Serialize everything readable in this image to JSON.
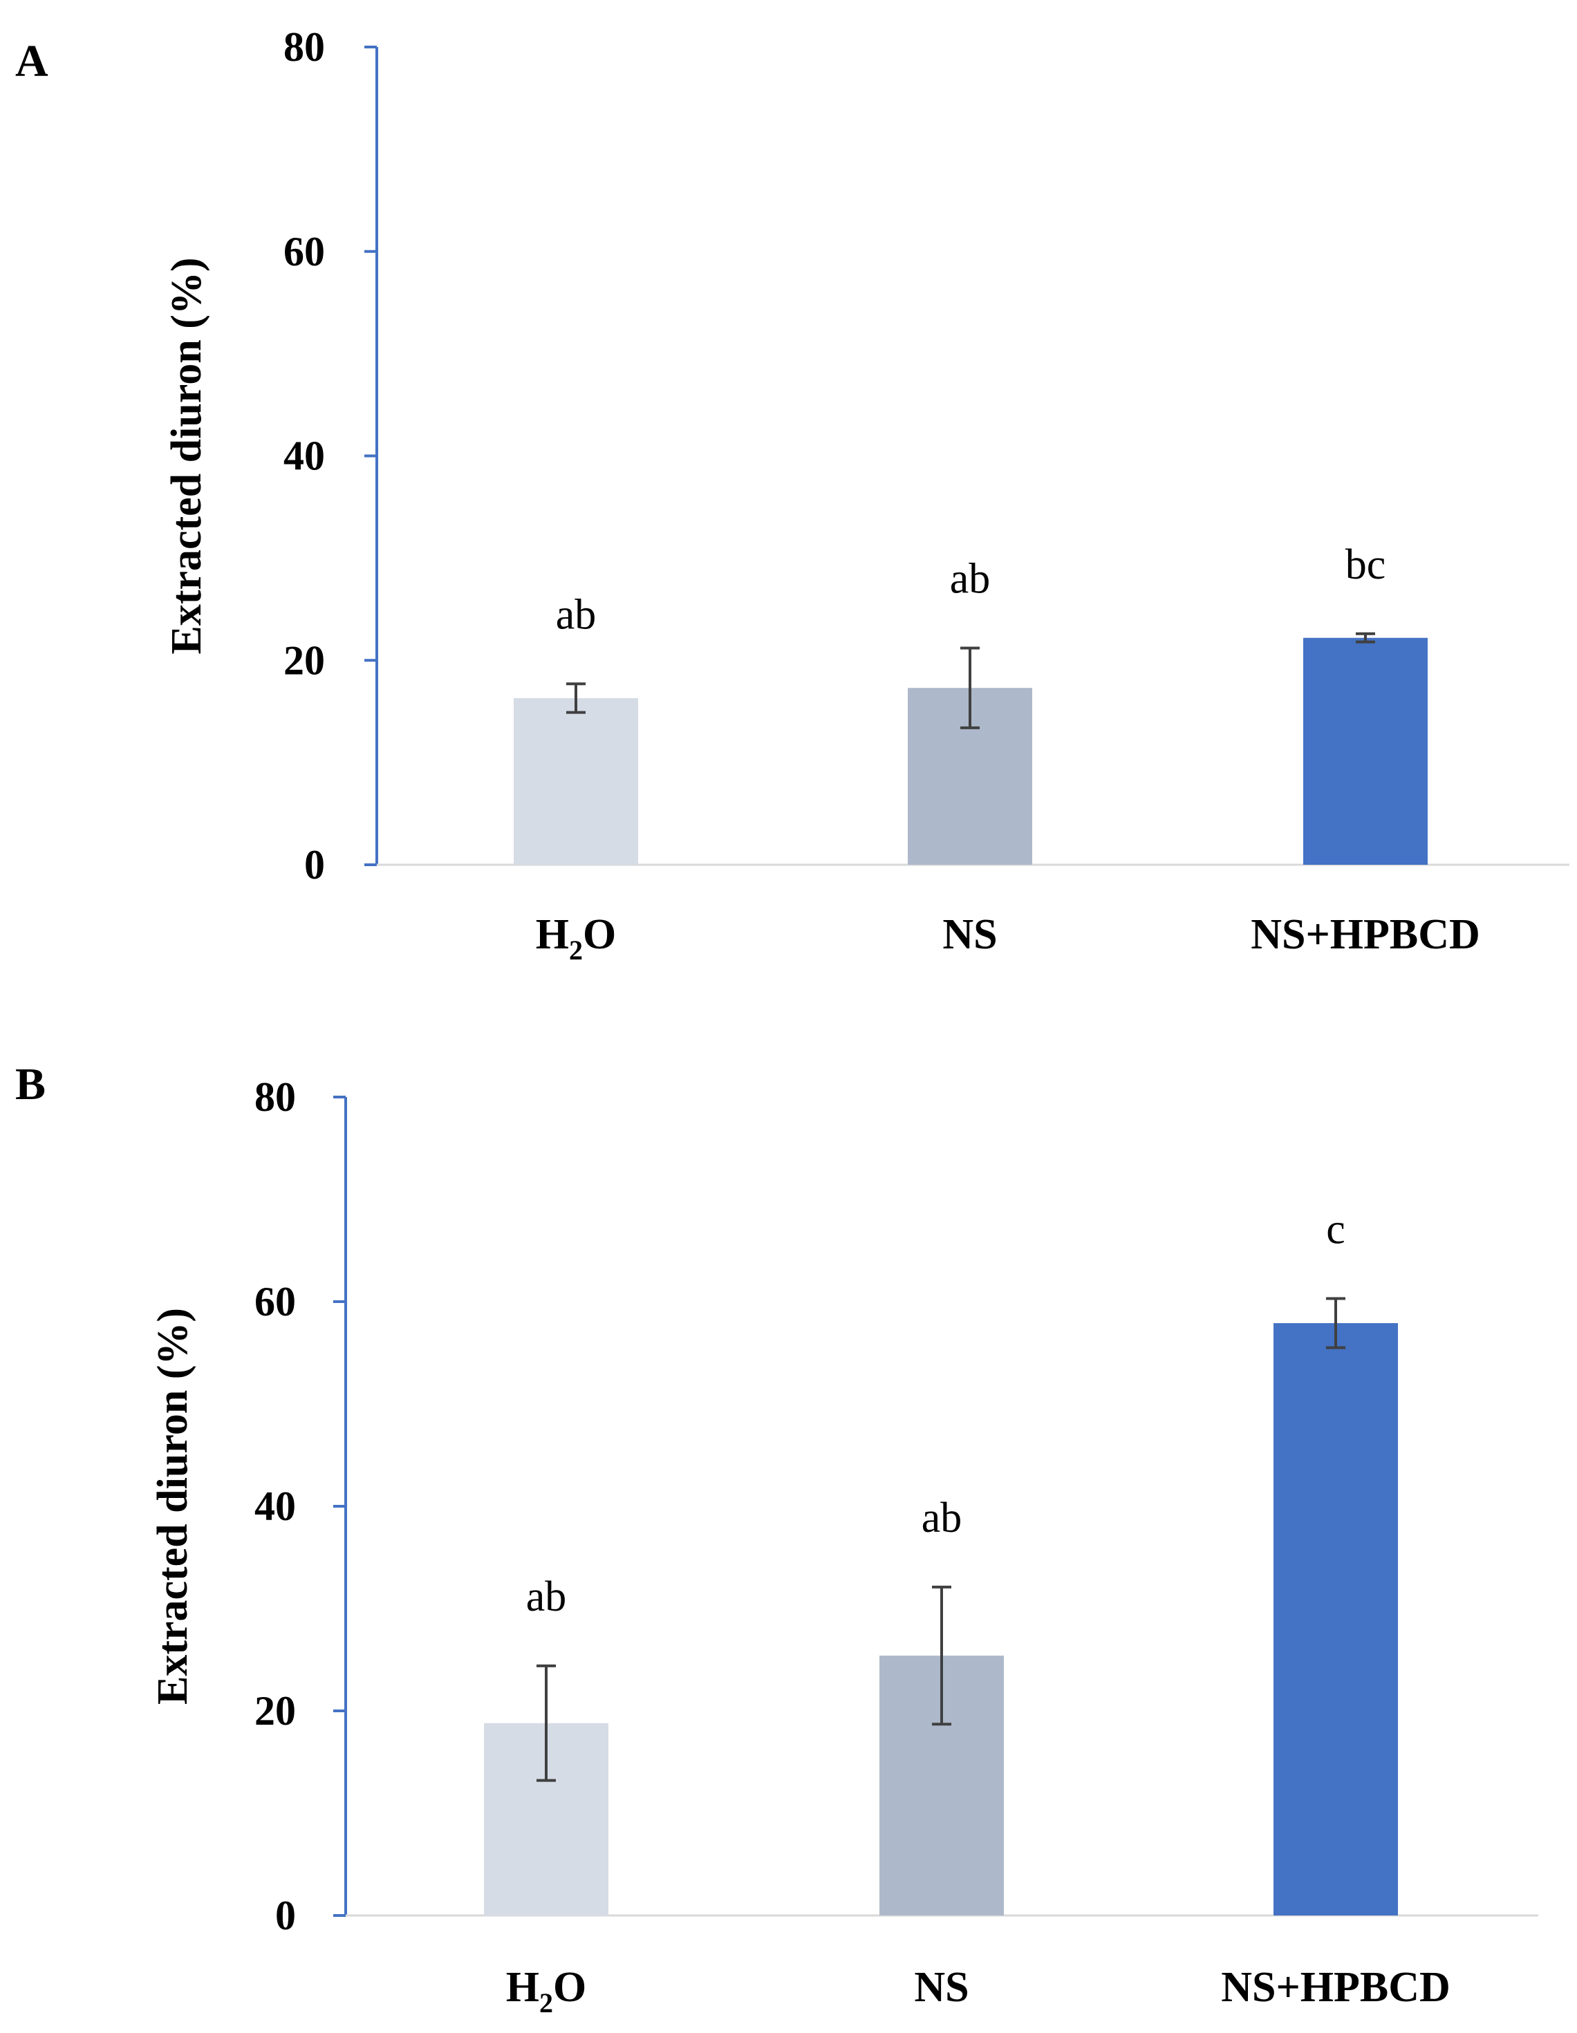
{
  "chart_data": [
    {
      "panel": "A",
      "type": "bar",
      "ylabel": "Extracted diuron (%)",
      "xlabel": "",
      "ylim": [
        0,
        80
      ],
      "yticks": [
        0,
        20,
        40,
        60,
        80
      ],
      "categories": [
        {
          "label": "H",
          "sub": "2",
          "tail": "O"
        },
        {
          "label": "NS",
          "sub": "",
          "tail": ""
        },
        {
          "label": "NS+HPBCD",
          "sub": "",
          "tail": ""
        }
      ],
      "values": [
        16.3,
        17.3,
        22.2
      ],
      "errors": [
        1.4,
        3.9,
        0.4
      ],
      "sig_labels": [
        "ab",
        "ab",
        "bc"
      ],
      "colors": [
        "#d6dce5",
        "#adb9ca",
        "#4472c4"
      ],
      "axis_color": "#4472c4",
      "grid": false,
      "legend": "none"
    },
    {
      "panel": "B",
      "type": "bar",
      "ylabel": "Extracted diuron (%)",
      "xlabel": "",
      "ylim": [
        0,
        80
      ],
      "yticks": [
        0,
        20,
        40,
        60,
        80
      ],
      "categories": [
        {
          "label": "H",
          "sub": "2",
          "tail": "O"
        },
        {
          "label": "NS",
          "sub": "",
          "tail": ""
        },
        {
          "label": "NS+HPBCD",
          "sub": "",
          "tail": ""
        }
      ],
      "values": [
        18.8,
        25.4,
        57.9
      ],
      "errors": [
        5.6,
        6.7,
        2.4
      ],
      "sig_labels": [
        "ab",
        "ab",
        "c"
      ],
      "colors": [
        "#d6dce5",
        "#adb9ca",
        "#4472c4"
      ],
      "axis_color": "#4472c4",
      "grid": false,
      "legend": "none"
    }
  ]
}
